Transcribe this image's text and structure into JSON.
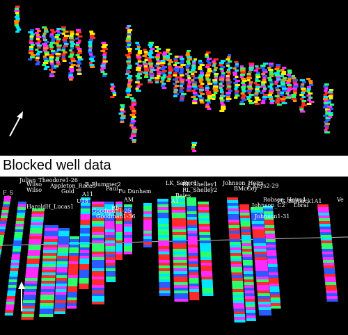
{
  "caption": "Blocked well data",
  "colors": {
    "background": "#000000",
    "facies": [
      "#ff2a2a",
      "#00e5ff",
      "#2c5bff",
      "#2bff6a",
      "#ff2bff",
      "#ffee00",
      "#ff8a00"
    ]
  },
  "well_labels": [
    "Julian_Theodore1-26",
    "Appleton_Race3",
    "B_Plummer2",
    "Wilso",
    "Wilso",
    "Gold",
    "A11",
    "Paul",
    "Fu Dunham",
    "LK_Salter1",
    "RL_Shelley1",
    "RL_Shelley2",
    "Johnson_Heirs",
    "J_Keys2-29",
    "BMcCoy",
    "Bales",
    "A1",
    "HaroldH_Lucas1",
    "Goodman1-25",
    "Goodman1-36",
    "Rb",
    "U18",
    "AM",
    "Robson_Heirs4",
    "PG_Bigpack1A1",
    "Johnson_C2",
    "Loral",
    "Johnson1-31",
    "Ve",
    "F_S"
  ],
  "icons": {
    "top_arrow": "up-arrow-icon",
    "bottom_arrow": "up-arrow-icon"
  }
}
